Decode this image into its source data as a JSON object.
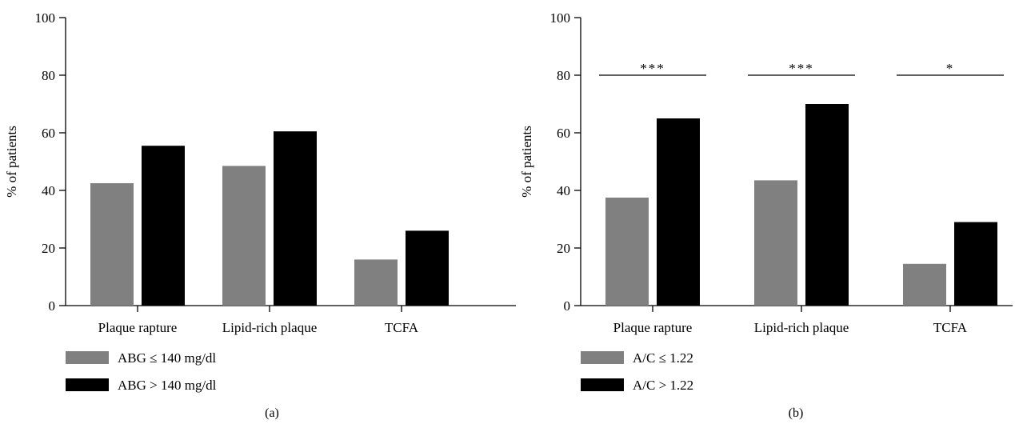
{
  "colors": {
    "series1": "#808080",
    "series2": "#000000",
    "axis": "#000000"
  },
  "chart_data": [
    {
      "type": "bar",
      "panel_label": "(a)",
      "ylabel": "% of patients",
      "ylim": [
        0,
        100
      ],
      "yticks": [
        0,
        20,
        40,
        60,
        80,
        100
      ],
      "categories": [
        "Plaque rapture",
        "Lipid-rich plaque",
        "TCFA"
      ],
      "series": [
        {
          "name": "ABG ≤ 140 mg/dl",
          "values": [
            42.5,
            48.5,
            16
          ]
        },
        {
          "name": "ABG > 140 mg/dl",
          "values": [
            55.5,
            60.5,
            26
          ]
        }
      ],
      "significance": [],
      "legend_position": "bottom-left",
      "grid": false
    },
    {
      "type": "bar",
      "panel_label": "(b)",
      "ylabel": "% of patients",
      "ylim": [
        0,
        100
      ],
      "yticks": [
        0,
        20,
        40,
        60,
        80,
        100
      ],
      "categories": [
        "Plaque rapture",
        "Lipid-rich plaque",
        "TCFA"
      ],
      "series": [
        {
          "name": "A/C ≤ 1.22",
          "values": [
            37.5,
            43.5,
            14.5
          ]
        },
        {
          "name": "A/C > 1.22",
          "values": [
            65,
            70,
            29
          ]
        }
      ],
      "significance": [
        {
          "category": "Plaque rapture",
          "label": "***",
          "y": 80
        },
        {
          "category": "Lipid-rich plaque",
          "label": "***",
          "y": 80
        },
        {
          "category": "TCFA",
          "label": "*",
          "y": 80
        }
      ],
      "legend_position": "bottom-left",
      "grid": false
    }
  ]
}
